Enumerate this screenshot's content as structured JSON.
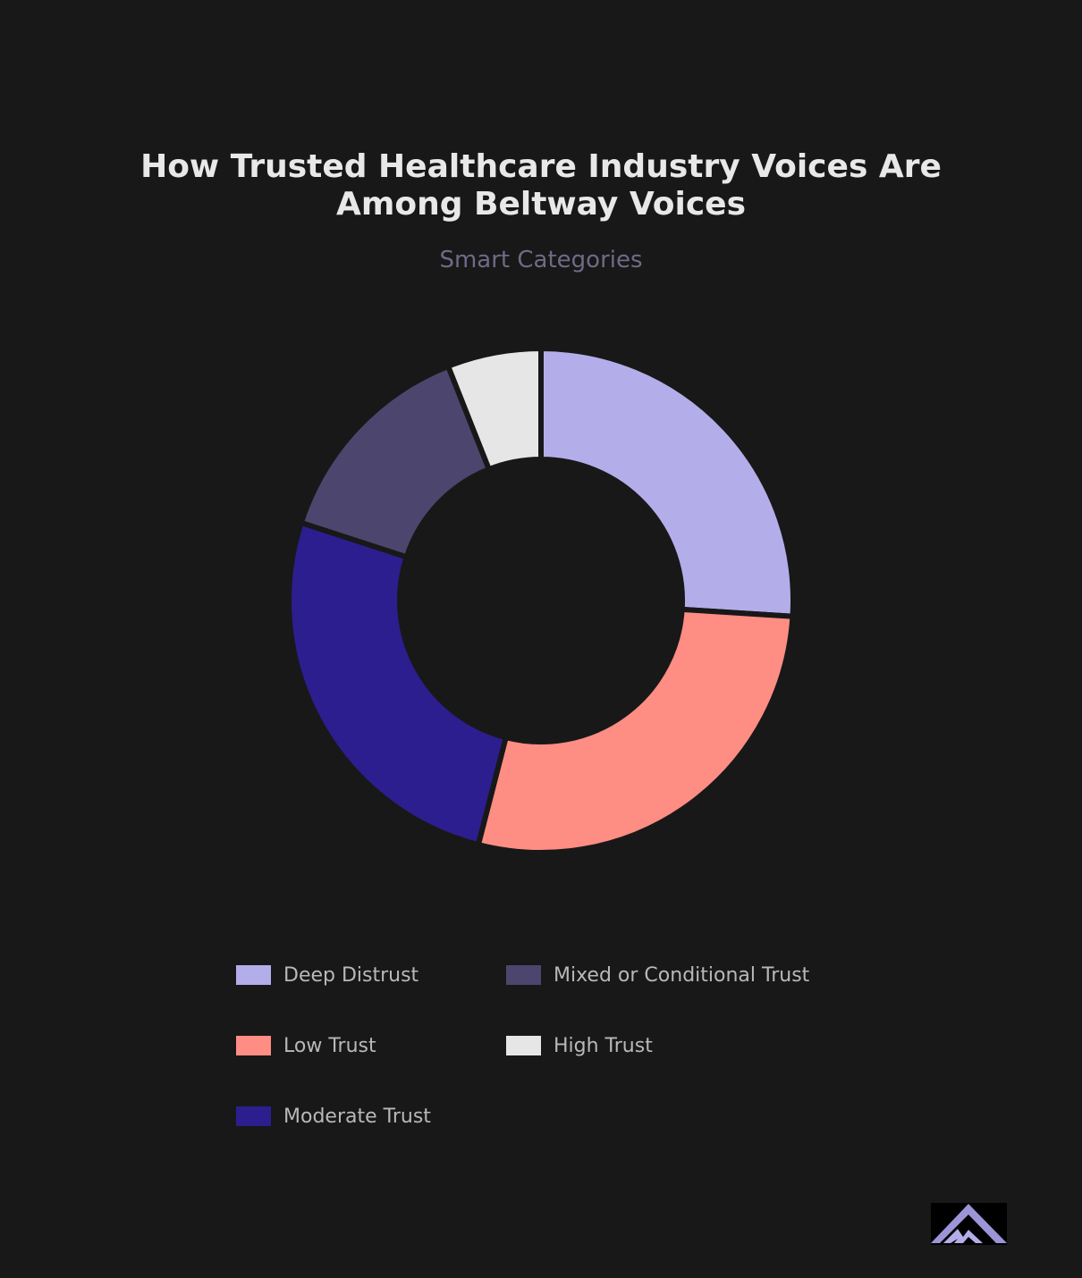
{
  "chart_data": {
    "type": "pie",
    "variant": "donut",
    "title_lines": [
      "How Trusted Healthcare Industry Voices Are",
      "Among Beltway Voices"
    ],
    "subtitle": "Smart Categories",
    "categories": [
      "Deep Distrust",
      "Low Trust",
      "Moderate Trust",
      "Mixed or Conditional Trust",
      "High Trust"
    ],
    "values": [
      26.0,
      28.0,
      26.0,
      14.0,
      6.0
    ],
    "colors": [
      "#b3aeea",
      "#fe8d84",
      "#2c1e8f",
      "#4c466e",
      "#e6e6e6"
    ],
    "legend_position": "bottom",
    "legend_order": [
      0,
      3,
      1,
      4,
      2
    ]
  },
  "theme": {
    "background": "#181818",
    "title_color": "#e8e8e8",
    "subtitle_color": "#6f6a86",
    "legend_text_color": "#b8b8b8",
    "logo_color": "#9b95d8"
  },
  "logo": {
    "icon": "mountain-logo-icon"
  }
}
